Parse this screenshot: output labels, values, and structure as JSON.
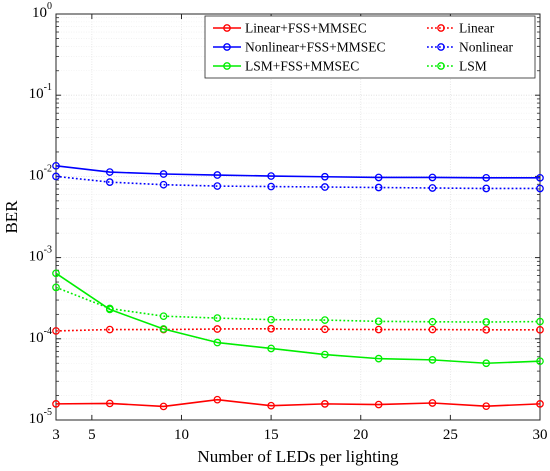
{
  "chart_data": {
    "type": "line",
    "title": "",
    "xlabel": "Number of LEDs per lighting",
    "ylabel": "BER",
    "xlim": [
      3,
      30
    ],
    "ylim": [
      1e-05,
      1
    ],
    "yscale": "log",
    "grid": true,
    "legend_position": "top-right",
    "x_ticks": [
      3,
      5,
      10,
      15,
      20,
      25,
      30
    ],
    "y_tick_exponents": [
      -5,
      -4,
      -3,
      -2,
      -1,
      0
    ],
    "x": [
      3,
      6,
      9,
      12,
      15,
      18,
      21,
      24,
      27,
      30
    ],
    "series": [
      {
        "name": "Linear+FSS+MMSEC",
        "color": "#ff0000",
        "style": "solid",
        "values": [
          1.58e-05,
          1.6e-05,
          1.47e-05,
          1.78e-05,
          1.5e-05,
          1.58e-05,
          1.55e-05,
          1.62e-05,
          1.48e-05,
          1.58e-05
        ]
      },
      {
        "name": "Linear",
        "color": "#ff0000",
        "style": "dotted",
        "values": [
          0.000125,
          0.00013,
          0.00013,
          0.000132,
          0.000133,
          0.000131,
          0.00013,
          0.00013,
          0.000129,
          0.000129
        ]
      },
      {
        "name": "Nonlinear+FSS+MMSEC",
        "color": "#0000ff",
        "style": "solid",
        "values": [
          0.0135,
          0.0113,
          0.0107,
          0.0104,
          0.0101,
          0.0099,
          0.0097,
          0.0097,
          0.0096,
          0.0096
        ]
      },
      {
        "name": "Nonlinear",
        "color": "#0000ff",
        "style": "dotted",
        "values": [
          0.01,
          0.0085,
          0.0079,
          0.0076,
          0.0075,
          0.0074,
          0.0073,
          0.0072,
          0.0071,
          0.0071
        ]
      },
      {
        "name": "LSM+FSS+MMSEC",
        "color": "#00ee00",
        "style": "solid",
        "values": [
          0.00064,
          0.00023,
          0.000132,
          9e-05,
          7.6e-05,
          6.4e-05,
          5.7e-05,
          5.5e-05,
          5e-05,
          5.3e-05
        ]
      },
      {
        "name": "LSM",
        "color": "#00ee00",
        "style": "dotted",
        "values": [
          0.00043,
          0.000236,
          0.00019,
          0.00018,
          0.000172,
          0.00017,
          0.000164,
          0.000162,
          0.000161,
          0.000163
        ]
      }
    ]
  }
}
